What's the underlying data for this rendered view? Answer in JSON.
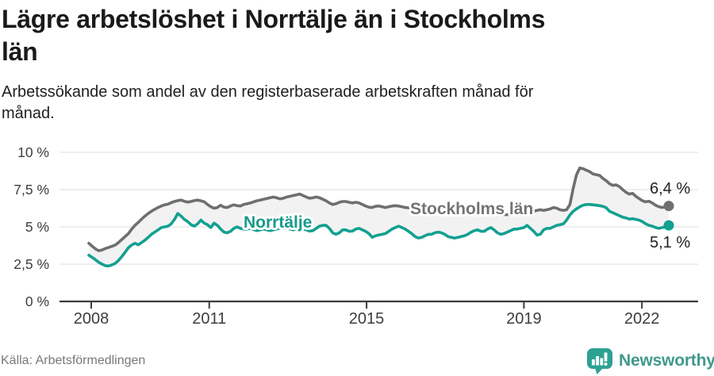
{
  "header": {
    "title": "Lägre arbetslöshet i Norrtälje än i Stockholms län",
    "title_lines": [
      "Lägre arbetslöshet i Norrtälje än i Stockholms",
      "län"
    ],
    "subtitle": "Arbetssökande som andel av den registerbaserade arbetskraften månad för månad.",
    "subtitle_lines": [
      "Arbetssökande som andel av den registerbaserade arbetskraften månad för",
      "månad."
    ]
  },
  "footer": {
    "source": "Källa: Arbetsförmedlingen",
    "brand": "Newsworthy"
  },
  "colors": {
    "norrtalje_line": "#13a090",
    "norrtalje_label": "#179a8b",
    "stockholm_line": "#6f6f6f",
    "stockholm_label": "#737373",
    "band_fill": "#f2f2f2",
    "grid": "#e3e3e3",
    "axis": "#3d3d3d",
    "tick_text": "#3d3d3d",
    "end_label_text": "#222222",
    "logo_teal": "#2ea193",
    "logo_word_teal": "#3f998d",
    "title_text": "#1a1a1a"
  },
  "chart_data": {
    "type": "line",
    "title": "Lägre arbetslöshet i Norrtälje än i Stockholms län",
    "subtitle": "Arbetssökande som andel av den registerbaserade arbetskraften månad för månad.",
    "source": "Källa: Arbetsförmedlingen",
    "frequency": "monthly",
    "x_start": "2008-01",
    "x_end": "2022-09",
    "x_tick_years": [
      2008,
      2011,
      2015,
      2019,
      2022
    ],
    "y_ticks": [
      {
        "value": 10,
        "label": "10 %"
      },
      {
        "value": 7.5,
        "label": "7,5 %"
      },
      {
        "value": 5,
        "label": "5 %"
      },
      {
        "value": 2.5,
        "label": "2,5 %"
      },
      {
        "value": 0,
        "label": "0 %"
      }
    ],
    "ylim": [
      0,
      10
    ],
    "y_unit": "%",
    "grid": true,
    "legend": "inline-labels",
    "band_between_series": true,
    "series": [
      {
        "name": "Stockholms län",
        "color": "#6f6f6f",
        "label_color": "#737373",
        "end_value": 6.4,
        "end_label": "6,4 %",
        "values": [
          3.9,
          3.7,
          3.52,
          3.4,
          3.45,
          3.55,
          3.62,
          3.7,
          3.78,
          3.95,
          4.15,
          4.35,
          4.55,
          4.85,
          5.1,
          5.3,
          5.52,
          5.72,
          5.9,
          6.05,
          6.18,
          6.3,
          6.4,
          6.48,
          6.52,
          6.62,
          6.7,
          6.76,
          6.8,
          6.72,
          6.66,
          6.7,
          6.76,
          6.8,
          6.75,
          6.68,
          6.5,
          6.35,
          6.25,
          6.3,
          6.45,
          6.32,
          6.3,
          6.4,
          6.48,
          6.42,
          6.4,
          6.5,
          6.55,
          6.6,
          6.68,
          6.75,
          6.8,
          6.85,
          6.9,
          6.95,
          7.0,
          6.95,
          6.88,
          6.92,
          7.0,
          7.05,
          7.1,
          7.15,
          7.2,
          7.1,
          7.0,
          6.92,
          6.95,
          7.0,
          6.95,
          6.85,
          6.75,
          6.6,
          6.5,
          6.55,
          6.65,
          6.7,
          6.7,
          6.65,
          6.6,
          6.65,
          6.6,
          6.5,
          6.4,
          6.32,
          6.3,
          6.38,
          6.4,
          6.35,
          6.3,
          6.35,
          6.4,
          6.42,
          6.4,
          6.35,
          6.3,
          6.28,
          6.25,
          6.22,
          6.2,
          6.18,
          6.15,
          6.12,
          6.1,
          6.1,
          6.08,
          6.05,
          6.05,
          6.02,
          6.0,
          5.98,
          5.95,
          5.94,
          5.92,
          5.9,
          5.9,
          5.92,
          5.94,
          5.95,
          5.95,
          5.92,
          5.9,
          5.88,
          5.86,
          5.85,
          5.83,
          5.82,
          5.83,
          5.85,
          5.88,
          5.9,
          5.9,
          5.95,
          6.0,
          6.05,
          6.1,
          6.15,
          6.1,
          6.15,
          6.2,
          6.3,
          6.25,
          6.15,
          6.1,
          6.15,
          6.5,
          7.6,
          8.5,
          8.95,
          8.9,
          8.8,
          8.7,
          8.55,
          8.5,
          8.45,
          8.25,
          8.1,
          7.9,
          7.78,
          7.82,
          7.7,
          7.5,
          7.32,
          7.2,
          7.25,
          7.05,
          6.9,
          6.75,
          6.68,
          6.72,
          6.6,
          6.45,
          6.35,
          6.3,
          6.35,
          6.4
        ]
      },
      {
        "name": "Norrtälje",
        "color": "#13a090",
        "label_color": "#179a8b",
        "end_value": 5.1,
        "end_label": "5,1 %",
        "values": [
          3.1,
          2.95,
          2.8,
          2.62,
          2.5,
          2.4,
          2.38,
          2.45,
          2.55,
          2.75,
          3.0,
          3.3,
          3.6,
          3.78,
          3.9,
          3.8,
          3.95,
          4.1,
          4.3,
          4.5,
          4.65,
          4.8,
          4.95,
          5.0,
          5.05,
          5.2,
          5.5,
          5.9,
          5.72,
          5.5,
          5.35,
          5.15,
          5.05,
          5.2,
          5.45,
          5.25,
          5.15,
          4.95,
          5.25,
          5.1,
          4.85,
          4.65,
          4.6,
          4.7,
          4.9,
          5.0,
          4.9,
          4.85,
          4.85,
          4.9,
          4.82,
          4.75,
          4.8,
          4.85,
          4.8,
          4.75,
          4.8,
          4.85,
          4.9,
          4.9,
          4.9,
          4.85,
          4.8,
          4.85,
          4.9,
          4.85,
          4.8,
          4.72,
          4.75,
          4.9,
          5.05,
          5.1,
          5.1,
          4.9,
          4.6,
          4.5,
          4.6,
          4.8,
          4.8,
          4.7,
          4.72,
          4.85,
          4.9,
          4.8,
          4.7,
          4.55,
          4.3,
          4.4,
          4.45,
          4.5,
          4.55,
          4.7,
          4.85,
          4.95,
          5.05,
          4.95,
          4.85,
          4.7,
          4.55,
          4.35,
          4.25,
          4.3,
          4.4,
          4.5,
          4.5,
          4.6,
          4.65,
          4.6,
          4.5,
          4.35,
          4.3,
          4.25,
          4.3,
          4.35,
          4.4,
          4.5,
          4.65,
          4.75,
          4.8,
          4.7,
          4.7,
          4.85,
          4.95,
          4.8,
          4.6,
          4.5,
          4.55,
          4.65,
          4.75,
          4.85,
          4.85,
          4.9,
          4.95,
          5.1,
          4.9,
          4.7,
          4.45,
          4.5,
          4.8,
          4.9,
          4.9,
          5.0,
          5.1,
          5.15,
          5.2,
          5.45,
          5.8,
          6.05,
          6.2,
          6.35,
          6.45,
          6.5,
          6.5,
          6.48,
          6.45,
          6.42,
          6.38,
          6.28,
          6.05,
          5.95,
          5.85,
          5.75,
          5.65,
          5.6,
          5.52,
          5.55,
          5.5,
          5.45,
          5.35,
          5.2,
          5.1,
          5.05,
          4.95,
          4.9,
          4.95,
          5.0,
          5.1
        ]
      }
    ]
  }
}
